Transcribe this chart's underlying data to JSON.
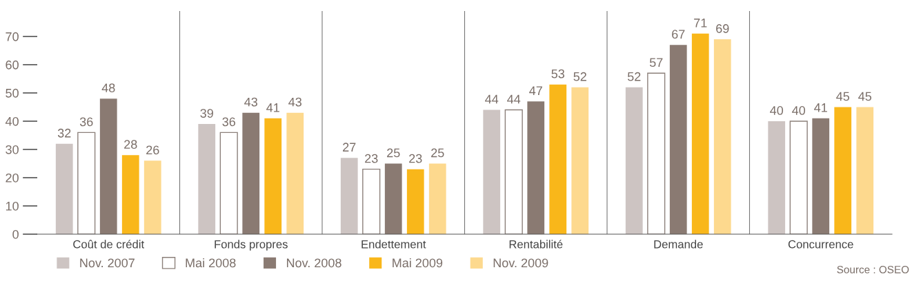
{
  "chart_data": {
    "type": "bar",
    "categories": [
      "Coût de crédit",
      "Fonds propres",
      "Endettement",
      "Rentabilité",
      "Demande",
      "Concurrence"
    ],
    "series": [
      {
        "name": "Nov. 2007",
        "color": "#cdc4c2",
        "values": [
          32,
          39,
          27,
          44,
          52,
          40
        ]
      },
      {
        "name": "Mai 2008",
        "color": "#ffffff",
        "values": [
          36,
          36,
          23,
          44,
          57,
          40
        ]
      },
      {
        "name": "Nov. 2008",
        "color": "#8a7a72",
        "values": [
          48,
          43,
          25,
          47,
          67,
          41
        ]
      },
      {
        "name": "Mai 2009",
        "color": "#f9b71a",
        "values": [
          28,
          41,
          23,
          53,
          71,
          45
        ]
      },
      {
        "name": "Nov. 2009",
        "color": "#fdd98e",
        "values": [
          26,
          43,
          25,
          52,
          69,
          45
        ]
      }
    ],
    "ylim": [
      0,
      79
    ],
    "yticks": [
      0,
      10,
      20,
      30,
      40,
      50,
      60,
      70
    ],
    "data_labels": true,
    "grid": false,
    "legend": "bottom left",
    "annotations": [
      "Source : OSEO"
    ]
  }
}
